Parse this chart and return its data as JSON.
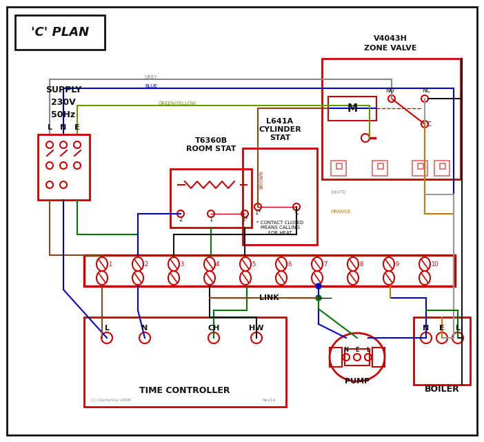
{
  "title": "'C' PLAN",
  "bg_color": "#ffffff",
  "red": "#cc0000",
  "pink_red": "#e08080",
  "brown": "#8B4513",
  "blue": "#0000cc",
  "green": "#007700",
  "grey": "#888888",
  "orange": "#cc7700",
  "black": "#111111",
  "supply_text": "SUPPLY\n230V\n50Hz",
  "zone_valve_title": "V4043H\nZONE VALVE",
  "room_stat_title": "T6360B\nROOM STAT",
  "cyl_stat_title": "L641A\nCYLINDER\nSTAT",
  "time_ctrl_text": "TIME CONTROLLER",
  "pump_text": "PUMP",
  "boiler_text": "BOILER",
  "link_text": "LINK",
  "copyright": "(c) DarrenGz 2008",
  "rev": "Rev1d"
}
